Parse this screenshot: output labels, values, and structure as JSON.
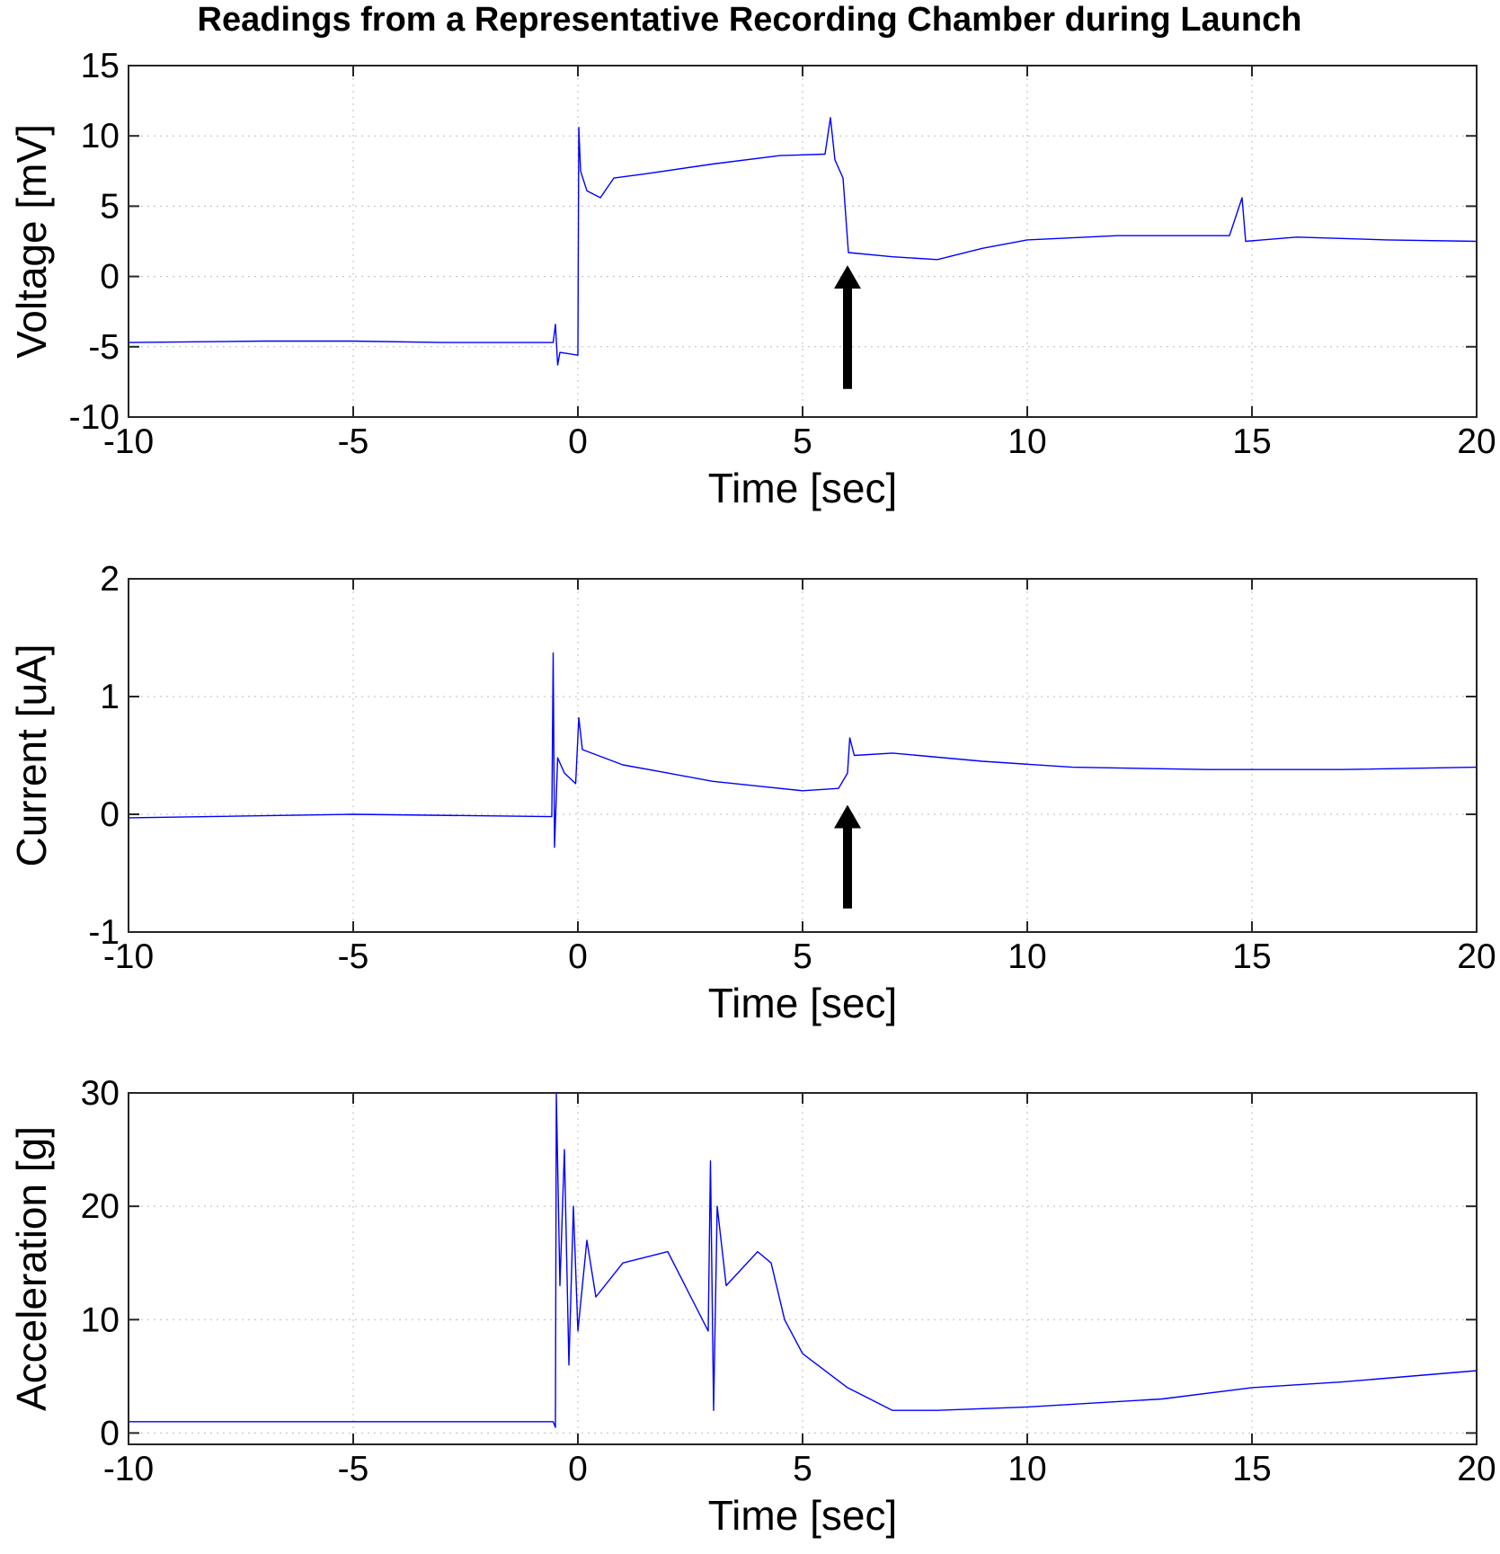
{
  "figure": {
    "title": "Readings from a Representative Recording Chamber during Launch",
    "line_color": "#0000ff",
    "annotation_color": "#000000"
  },
  "chart_data": [
    {
      "type": "line",
      "id": "voltage",
      "title": "",
      "xlabel": "Time [sec]",
      "ylabel": "Voltage [mV]",
      "xlim": [
        -10,
        20
      ],
      "ylim": [
        -10,
        15
      ],
      "xticks": [
        -10,
        -5,
        0,
        5,
        10,
        15,
        20
      ],
      "yticks": [
        -10,
        -5,
        0,
        5,
        10,
        15
      ],
      "grid": true,
      "series": [
        {
          "color": "#0000ff",
          "points": [
            [
              -10,
              -4.7
            ],
            [
              -7,
              -4.6
            ],
            [
              -5,
              -4.6
            ],
            [
              -3,
              -4.7
            ],
            [
              -0.55,
              -4.7
            ],
            [
              -0.5,
              -3.4
            ],
            [
              -0.45,
              -6.3
            ],
            [
              -0.4,
              -5.4
            ],
            [
              -0.2,
              -5.5
            ],
            [
              0,
              -5.6
            ],
            [
              0.02,
              10.6
            ],
            [
              0.06,
              7.5
            ],
            [
              0.2,
              6.1
            ],
            [
              0.5,
              5.6
            ],
            [
              0.8,
              7.0
            ],
            [
              1.5,
              7.3
            ],
            [
              3,
              8.0
            ],
            [
              4.5,
              8.6
            ],
            [
              5.5,
              8.7
            ],
            [
              5.62,
              11.3
            ],
            [
              5.72,
              8.3
            ],
            [
              5.9,
              7.0
            ],
            [
              6.02,
              1.7
            ],
            [
              7,
              1.4
            ],
            [
              8,
              1.2
            ],
            [
              9,
              2.0
            ],
            [
              10,
              2.6
            ],
            [
              12,
              2.9
            ],
            [
              14.5,
              2.9
            ],
            [
              14.78,
              5.6
            ],
            [
              14.86,
              2.5
            ],
            [
              16,
              2.8
            ],
            [
              18,
              2.6
            ],
            [
              20,
              2.5
            ]
          ]
        }
      ],
      "annotations": [
        {
          "type": "arrow",
          "x": 6.0,
          "y_tail": -8.0,
          "y_head": 0.8
        }
      ]
    },
    {
      "type": "line",
      "id": "current",
      "title": "",
      "xlabel": "Time [sec]",
      "ylabel": "Current [uA]",
      "xlim": [
        -10,
        20
      ],
      "ylim": [
        -1,
        2
      ],
      "xticks": [
        -10,
        -5,
        0,
        5,
        10,
        15,
        20
      ],
      "yticks": [
        -1,
        0,
        1,
        2
      ],
      "grid": true,
      "series": [
        {
          "color": "#0000ff",
          "points": [
            [
              -10,
              -0.03
            ],
            [
              -5,
              0.0
            ],
            [
              -0.58,
              -0.02
            ],
            [
              -0.55,
              1.37
            ],
            [
              -0.52,
              -0.28
            ],
            [
              -0.45,
              0.48
            ],
            [
              -0.3,
              0.35
            ],
            [
              -0.05,
              0.26
            ],
            [
              0.02,
              0.82
            ],
            [
              0.1,
              0.55
            ],
            [
              1,
              0.42
            ],
            [
              2,
              0.35
            ],
            [
              3,
              0.28
            ],
            [
              4,
              0.24
            ],
            [
              5,
              0.2
            ],
            [
              5.8,
              0.22
            ],
            [
              6.0,
              0.35
            ],
            [
              6.05,
              0.65
            ],
            [
              6.15,
              0.5
            ],
            [
              7,
              0.52
            ],
            [
              9,
              0.45
            ],
            [
              11,
              0.4
            ],
            [
              14,
              0.38
            ],
            [
              17,
              0.38
            ],
            [
              20,
              0.4
            ]
          ]
        }
      ],
      "annotations": [
        {
          "type": "arrow",
          "x": 6.0,
          "y_tail": -0.8,
          "y_head": 0.08
        }
      ]
    },
    {
      "type": "line",
      "id": "acceleration",
      "title": "",
      "xlabel": "Time [sec]",
      "ylabel": "Acceleration [g]",
      "xlim": [
        -10,
        20
      ],
      "ylim": [
        -1,
        30
      ],
      "xticks": [
        -10,
        -5,
        0,
        5,
        10,
        15,
        20
      ],
      "yticks": [
        0,
        10,
        20,
        30
      ],
      "grid": true,
      "series": [
        {
          "color": "#0000ff",
          "points": [
            [
              -10,
              1
            ],
            [
              -0.55,
              1
            ],
            [
              -0.5,
              0.5
            ],
            [
              -0.48,
              30
            ],
            [
              -0.4,
              13
            ],
            [
              -0.3,
              25
            ],
            [
              -0.2,
              6
            ],
            [
              -0.1,
              20
            ],
            [
              0,
              9
            ],
            [
              0.2,
              17
            ],
            [
              0.4,
              12
            ],
            [
              1,
              15
            ],
            [
              2,
              16
            ],
            [
              2.9,
              9
            ],
            [
              2.95,
              24
            ],
            [
              3.02,
              2
            ],
            [
              3.1,
              20
            ],
            [
              3.3,
              13
            ],
            [
              4,
              16
            ],
            [
              4.3,
              15
            ],
            [
              4.6,
              10
            ],
            [
              5,
              7
            ],
            [
              6,
              4
            ],
            [
              7,
              2
            ],
            [
              8,
              2
            ],
            [
              10,
              2.3
            ],
            [
              13,
              3
            ],
            [
              15,
              4
            ],
            [
              17,
              4.5
            ],
            [
              20,
              5.5
            ]
          ]
        }
      ],
      "annotations": []
    }
  ]
}
